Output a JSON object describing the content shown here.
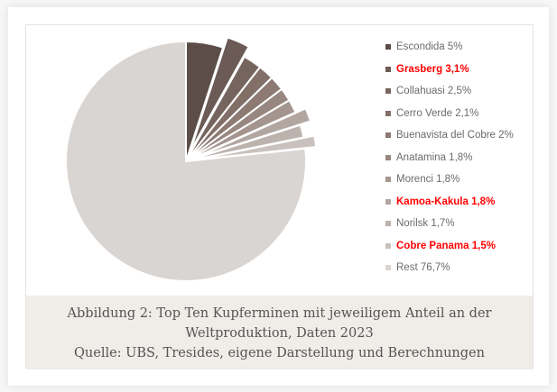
{
  "chart_data": {
    "type": "pie",
    "title": "",
    "start_angle_deg": 0,
    "direction": "clockwise",
    "slices": [
      {
        "label": "Escondida",
        "value": 5.0,
        "display": "Escondida 5%",
        "color": "#5c4d48",
        "exploded": false,
        "highlight": false
      },
      {
        "label": "Grasberg",
        "value": 3.1,
        "display": "Grasberg 3,1%",
        "color": "#6b5a55",
        "exploded": true,
        "highlight": true
      },
      {
        "label": "Collahuasi",
        "value": 2.5,
        "display": "Collahuasi 2,5%",
        "color": "#76655f",
        "exploded": false,
        "highlight": false
      },
      {
        "label": "Cerro Verde",
        "value": 2.1,
        "display": "Cerro Verde 2,1%",
        "color": "#826f68",
        "exploded": false,
        "highlight": false
      },
      {
        "label": "Buenavista del Cobre",
        "value": 2.0,
        "display": "Buenavista del Cobre 2%",
        "color": "#8c7a73",
        "exploded": false,
        "highlight": false
      },
      {
        "label": "Anatamina",
        "value": 1.8,
        "display": "Anatamina 1,8%",
        "color": "#988780",
        "exploded": false,
        "highlight": false
      },
      {
        "label": "Morenci",
        "value": 1.8,
        "display": "Morenci 1,8%",
        "color": "#a4958f",
        "exploded": false,
        "highlight": false
      },
      {
        "label": "Kamoa-Kakula",
        "value": 1.8,
        "display": "Kamoa-Kakula 1,8%",
        "color": "#b2a6a1",
        "exploded": true,
        "highlight": true
      },
      {
        "label": "Norilsk",
        "value": 1.7,
        "display": "Norilsk 1,7%",
        "color": "#bcb2ae",
        "exploded": false,
        "highlight": false
      },
      {
        "label": "Cobre Panama",
        "value": 1.5,
        "display": "Cobre Panama 1,5%",
        "color": "#c9c1bd",
        "exploded": true,
        "highlight": true
      },
      {
        "label": "Rest",
        "value": 76.7,
        "display": "Rest 76,7%",
        "color": "#d9d5d3",
        "exploded": false,
        "highlight": false
      }
    ],
    "legend_position": "right",
    "highlight_color": "#ff0000"
  },
  "legend": {
    "items": [
      {
        "label": "Escondida 5%"
      },
      {
        "label": "Grasberg 3,1%"
      },
      {
        "label": "Collahuasi 2,5%"
      },
      {
        "label": "Cerro Verde 2,1%"
      },
      {
        "label": "Buenavista del Cobre 2%"
      },
      {
        "label": "Anatamina 1,8%"
      },
      {
        "label": "Morenci 1,8%"
      },
      {
        "label": "Kamoa-Kakula 1,8%"
      },
      {
        "label": "Norilsk 1,7%"
      },
      {
        "label": "Cobre Panama 1,5%"
      },
      {
        "label": "Rest 76,7%"
      }
    ]
  },
  "caption": {
    "line1": "Abbildung 2: Top Ten Kupferminen mit jeweiligem Anteil an der",
    "line2": "Weltproduktion, Daten 2023",
    "line3": "Quelle: UBS, Tresides, eigene Darstellung und Berechnungen"
  }
}
